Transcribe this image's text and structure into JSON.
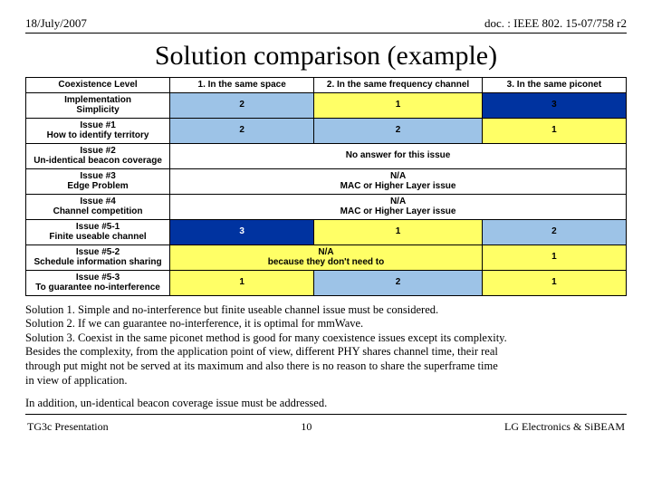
{
  "header": {
    "date": "18/July/2007",
    "doc": "doc. : IEEE 802. 15-07/758 r2"
  },
  "title": "Solution comparison (example)",
  "table": {
    "colwidths": [
      "24%",
      "24%",
      "28%",
      "24%"
    ],
    "head": [
      "Coexistence Level",
      "1. In the same space",
      "2. In the same frequency channel",
      "3. In the same piconet"
    ],
    "rows": [
      {
        "label": "Implementation\nSimplicity",
        "cells": [
          "2",
          "1",
          "3"
        ],
        "colors": [
          "#9dc3e7",
          "#ffff66",
          "#0033a0"
        ],
        "fg": [
          "#000",
          "#000",
          "#000"
        ]
      },
      {
        "label": "Issue #1\nHow to identify territory",
        "cells": [
          "2",
          "2",
          "1"
        ],
        "colors": [
          "#9dc3e7",
          "#9dc3e7",
          "#ffff66"
        ],
        "fg": [
          "#000",
          "#000",
          "#000"
        ]
      },
      {
        "label": "Issue #2\nUn-identical beacon coverage",
        "span": "No answer for this issue",
        "spancolor": "#ffffff"
      },
      {
        "label": "Issue #3\nEdge Problem",
        "span": "N/A\nMAC or Higher Layer issue",
        "spancolor": "#ffffff"
      },
      {
        "label": "Issue #4\nChannel competition",
        "span": "N/A\nMAC or Higher Layer issue",
        "spancolor": "#ffffff"
      },
      {
        "label": "Issue #5-1\nFinite useable channel",
        "cells": [
          "3",
          "1",
          "2"
        ],
        "colors": [
          "#0033a0",
          "#ffff66",
          "#9dc3e7"
        ],
        "fg": [
          "#fff",
          "#000",
          "#000"
        ]
      },
      {
        "label": "Issue #5-2\nSchedule information sharing",
        "spanstyle": true,
        "span": "N/A\nbecause they don't need to",
        "spancolor": "#ffff66",
        "lastcell": "1",
        "lastcolor": "#ffff66"
      },
      {
        "label": "Issue #5-3\nTo guarantee no-interference",
        "cells": [
          "1",
          "2",
          "1"
        ],
        "colors": [
          "#ffff66",
          "#9dc3e7",
          "#ffff66"
        ],
        "fg": [
          "#000",
          "#000",
          "#000"
        ]
      }
    ]
  },
  "notes": [
    "Solution 1. Simple and no-interference but finite useable channel issue must be considered.",
    "Solution 2. If we can guarantee no-interference, it is optimal for mmWave.",
    "Solution 3. Coexist in the same piconet method is good for many coexistence issues except its complexity.",
    "Besides the complexity, from the application point of view, different PHY shares channel time, their real",
    "through put might not be served at its maximum and also there is no reason to share the superframe time",
    "in view of application."
  ],
  "notes2": "In addition, un-identical beacon coverage issue must be addressed.",
  "footer": {
    "left": "TG3c Presentation",
    "mid": "10",
    "right": "LG Electronics & SiBEAM"
  }
}
